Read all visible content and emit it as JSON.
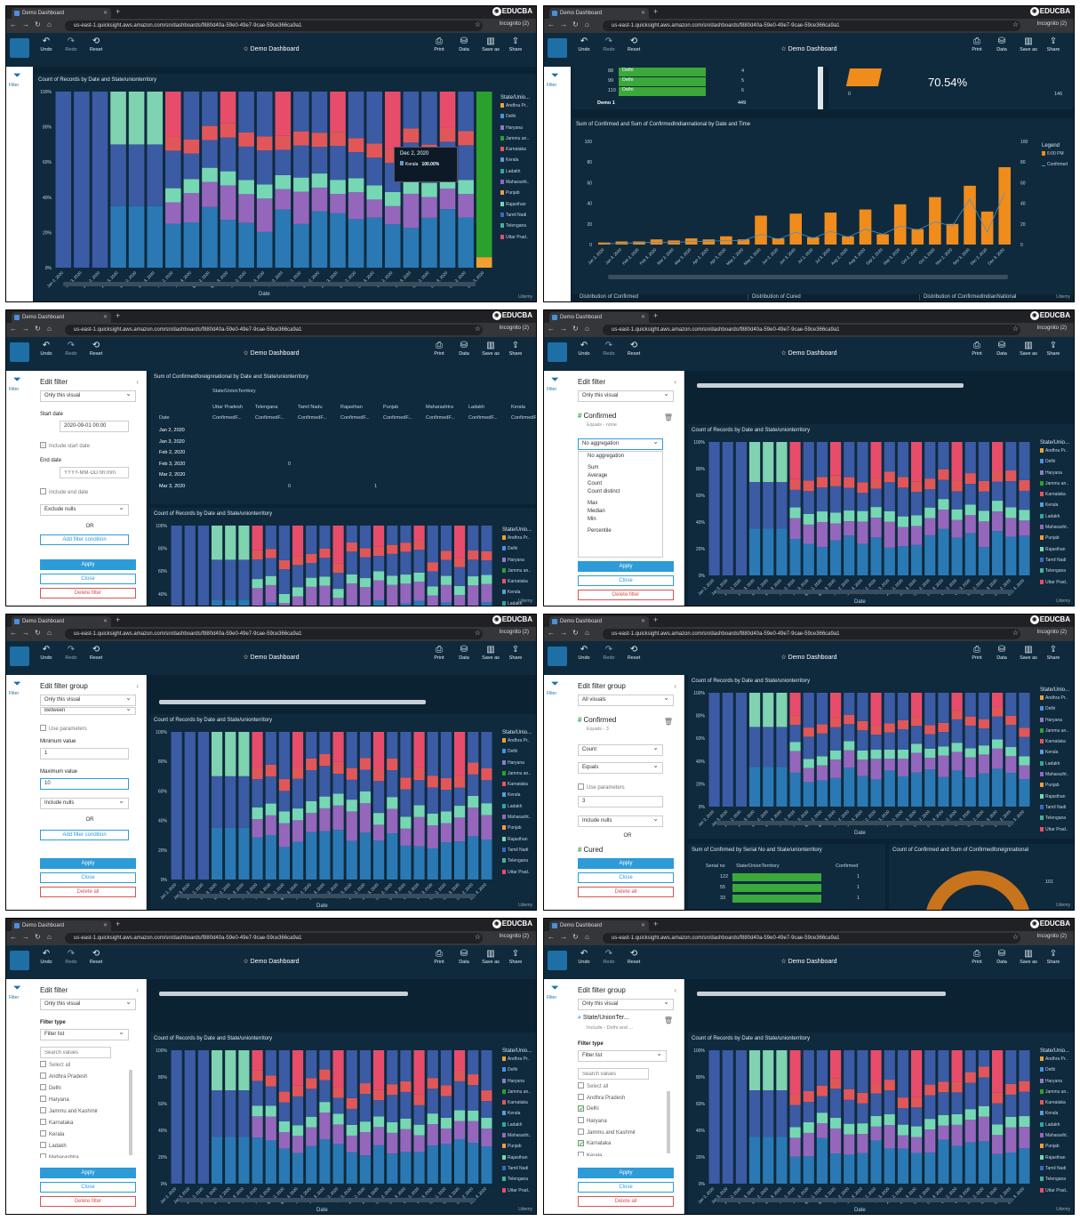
{
  "browser": {
    "tab_title": "Demo Dashboard",
    "url": "us-east-1.quicksight.aws.amazon.com/sn/dashboards/f880d40a-59e0-49e7-9cae-59ce366ca9a1",
    "incognito": "Incognito (2)",
    "brand": "EDUCBA"
  },
  "toolbar": {
    "undo": "Undo",
    "redo": "Redo",
    "reset": "Reset",
    "dashboard_title": "Demo Dashboard",
    "print": "Print",
    "data": "Data",
    "save_as": "Save as",
    "share": "Share",
    "filter": "Filter"
  },
  "watermark": "Udemy",
  "states_legend": {
    "title": "State/Unio...",
    "items": [
      "Andhra Pr..",
      "Delhi",
      "Haryana",
      "Jammu an..",
      "Karnataka",
      "Kerala",
      "Ladakh",
      "Maharasht..",
      "Punjab",
      "Rajasthan",
      "Tamil Nadi",
      "Telengana",
      "Uttar Prad.."
    ],
    "colors": [
      "#f0a030",
      "#4a90e2",
      "#8e7cc3",
      "#2ca02c",
      "#e15759",
      "#5b9bd5",
      "#29a9a0",
      "#9467bd",
      "#f59b42",
      "#76d7b4",
      "#3a68c4",
      "#43b0a0",
      "#e84c6b"
    ]
  },
  "chart_common": {
    "title": "Count of Records by Date and State/unionterritory",
    "xlabel": "Date",
    "y_ticks": [
      "0%",
      "20%",
      "40%",
      "60%",
      "80%",
      "100%"
    ],
    "dates": [
      "Jan 2, 2020",
      "Jan 3, 2020",
      "Feb 2, 2020",
      "Feb 3, 2020",
      "Mar 2, 2020",
      "Mar 3, 2020",
      "Apr 2, 2020",
      "Apr 3, 2020",
      "May 2, 2020",
      "May 3, 2020",
      "Jun 2, 2020",
      "Jun 3, 2020",
      "Jul 2, 2020",
      "Jul 3, 2020",
      "Aug 2, 2020",
      "Aug 3, 2020",
      "Sep 2, 2020",
      "Sep 3, 2020",
      "Oct 2, 2020",
      "Oct 3, 2020",
      "Nov 2, 2020",
      "Nov 3, 2020",
      "Dec 2, 2020",
      "Dec 3, 2020"
    ]
  },
  "panel1": {
    "tooltip_date": "Dec 2, 2020",
    "tooltip_state": "Kerala",
    "tooltip_value": "100.00%"
  },
  "panel2": {
    "rows": [
      [
        "88",
        "Delhi",
        "4"
      ],
      [
        "99",
        "Delhi",
        "5"
      ],
      [
        "110",
        "Delhi",
        "6"
      ]
    ],
    "total_label": "Demo 1",
    "total_value": "449",
    "pct": "70.54%",
    "gauge_min": "0",
    "gauge_max": "146",
    "chart_title": "Sum of Confirmed and Sum of ConfirmedIndiannational by Date and Time",
    "legend_title": "Legend",
    "legend_items": [
      "6:00 PM",
      "Confirmed"
    ],
    "y_ticks": [
      "0",
      "20",
      "40",
      "60",
      "80",
      "100"
    ],
    "y2_ticks": [
      "0",
      "20",
      "40",
      "60",
      "80",
      "100"
    ],
    "footer": [
      "Distribution of Confirmed",
      "Distribution of Cured",
      "Distribution of ConfirmedIndianNational"
    ]
  },
  "chart_data": [
    {
      "type": "bar",
      "title": "Sum of Confirmed and Sum of ConfirmedIndiannational by Date and Time",
      "categories": [
        "Jan 2, 2020",
        "Jan 3, 2020",
        "Feb 2, 2020",
        "Feb 3, 2020",
        "Mar 2, 2020",
        "Mar 3, 2020",
        "Apr 2, 2020",
        "Apr 3, 2020",
        "May 2, 2020",
        "May 3, 2020",
        "Jun 2, 2020",
        "Jun 3, 2020",
        "Jul 2, 2020",
        "Jul 3, 2020",
        "Aug 2, 2020",
        "Aug 3, 2020",
        "Sep 2, 2020",
        "Sep 3, 2020",
        "Oct 2, 2020",
        "Oct 3, 2020",
        "Nov 2, 2020",
        "Nov 3, 2020",
        "Dec 2, 2020",
        "Dec 3, 2020"
      ],
      "series": [
        {
          "name": "6:00 PM",
          "values": [
            2,
            3,
            3,
            5,
            4,
            6,
            5,
            8,
            5,
            28,
            6,
            30,
            7,
            31,
            8,
            34,
            10,
            39,
            15,
            46,
            20,
            57,
            32,
            75
          ]
        },
        {
          "name": "Confirmed",
          "values": [
            1,
            1,
            2,
            2,
            2,
            3,
            3,
            4,
            4,
            10,
            5,
            12,
            6,
            13,
            7,
            15,
            10,
            18,
            14,
            22,
            18,
            44,
            12,
            50
          ]
        }
      ],
      "ylim": [
        0,
        100
      ]
    }
  ],
  "panel3": {
    "side_title": "Edit filter",
    "scope": "Only this visual",
    "start_label": "Start date",
    "start_value": "2020-09-01 00:00",
    "include_start": "Include start date",
    "end_label": "End date",
    "end_placeholder": "YYYY-MM-DD hh:mm",
    "include_end": "Include end date",
    "nulls": "Exclude nulls",
    "or": "OR",
    "add_condition": "Add filter condition",
    "apply": "Apply",
    "close": "Close",
    "delete": "Delete filter",
    "table_title": "Sum of Confirmedforeignnational by Date and State/unionterritory",
    "table_group": "State/UnionTerritory",
    "table_date_col": "Date",
    "table_cols": [
      "Uttar Pradesh",
      "Telengana",
      "Tamil Nadu",
      "Rajasthan",
      "Punjab",
      "Maharashtra",
      "Ladakh",
      "Kerala"
    ],
    "table_sub": "ConfirmedF...",
    "table_rows": [
      [
        "Jan 2, 2020",
        ""
      ],
      [
        "Jan 3, 2020",
        ""
      ],
      [
        "Feb 2, 2020",
        ""
      ],
      [
        "Feb 3, 2020",
        "0"
      ],
      [
        "Mar 2, 2020",
        ""
      ],
      [
        "Mar 3, 2020",
        "0",
        "1"
      ]
    ]
  },
  "panel4": {
    "side_title": "Edit filter",
    "scope": "Only this visual",
    "field": "Confirmed",
    "field_sub": "Equals - none",
    "agg_selected": "No aggregation",
    "agg_options": [
      "No aggregation",
      "Sum",
      "Average",
      "Count",
      "Count distinct",
      "Max",
      "Median",
      "Min",
      "Percentile"
    ],
    "apply": "Apply",
    "close": "Close",
    "delete": "Delete filter"
  },
  "panel5": {
    "side_title": "Edit filter group",
    "scope": "Only this visual",
    "op": "Between",
    "use_params": "Use parameters",
    "min_label": "Minimum value",
    "min_value": "1",
    "max_label": "Maximum value",
    "max_value": "10",
    "nulls": "Include nulls",
    "or": "OR",
    "add_condition": "Add filter condition",
    "apply": "Apply",
    "close": "Close",
    "delete": "Delete all"
  },
  "panel6": {
    "side_title": "Edit filter group",
    "scope": "All visuals",
    "field": "Confirmed",
    "field_sub": "Equals - 3",
    "agg": "Count",
    "op": "Equals",
    "use_params": "Use parameters",
    "value": "3",
    "nulls": "Include nulls",
    "or": "OR",
    "field2": "Cured",
    "apply": "Apply",
    "close": "Close",
    "delete": "Delete all",
    "t2_title": "Sum of Confirmed by Serial No and State/unionterritory",
    "t2_cols": [
      "Serial no",
      "State/UnionTerritory",
      "Confirmed"
    ],
    "t2_rows": [
      [
        "122",
        "1"
      ],
      [
        "55",
        "1"
      ],
      [
        "33",
        "1"
      ]
    ],
    "t3_title": "Count of Confirmed and Sum of Confirmedforeignnational",
    "t3_value": "101"
  },
  "panel7": {
    "side_title": "Edit filter",
    "scope": "Only this visual",
    "type_label": "Filter type",
    "type_value": "Filter list",
    "search": "Search values",
    "select_all": "Select all",
    "items": [
      "Andhra Pradesh",
      "Delhi",
      "Haryana",
      "Jammu and Kashmir",
      "Karnataka",
      "Kerala",
      "Ladakh",
      "Maharashtra"
    ],
    "apply": "Apply",
    "close": "Close",
    "delete": "Delete filter"
  },
  "panel8": {
    "side_title": "Edit filter group",
    "scope": "Only this visual",
    "field": "State/UnionTer...",
    "field_sub": "Include - Delhi and ...",
    "type_label": "Filter type",
    "type_value": "Filter list",
    "search": "Search values",
    "select_all": "Select all",
    "items": [
      "Andhra Pradesh",
      "Delhi",
      "Haryana",
      "Jammu and Kashmir",
      "Karnataka",
      "Kerala"
    ],
    "checked": [
      false,
      true,
      false,
      false,
      true,
      false
    ],
    "apply": "Apply",
    "close": "Close",
    "delete": "Delete all"
  }
}
